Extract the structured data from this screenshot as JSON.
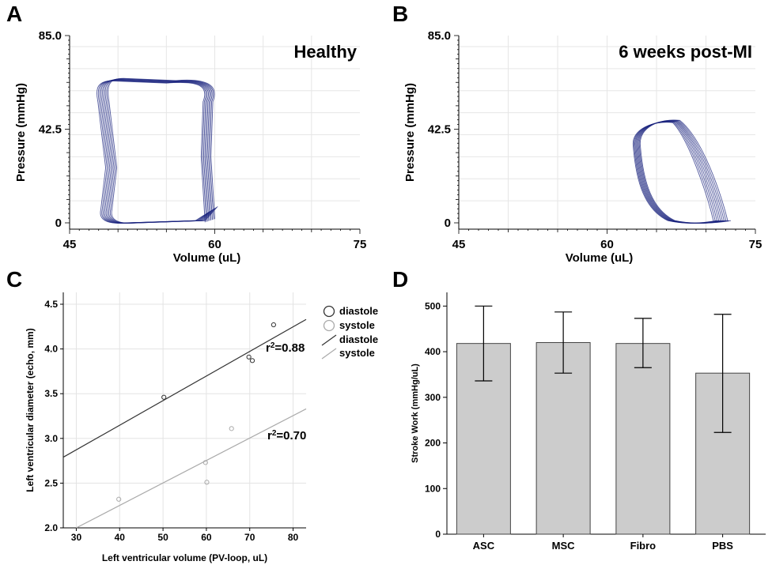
{
  "panels": {
    "a": {
      "letter": "A",
      "title": "Healthy"
    },
    "b": {
      "letter": "B",
      "title": "6 weeks post-MI"
    },
    "c": {
      "letter": "C"
    },
    "d": {
      "letter": "D"
    }
  },
  "chart_data": [
    {
      "id": "A",
      "type": "line",
      "title": "Healthy",
      "xlabel": "Volume (uL)",
      "ylabel": "Pressure (mmHg)",
      "xlim": [
        45,
        75
      ],
      "ylim": [
        0,
        85
      ],
      "xticks": [
        "45",
        "60",
        "75"
      ],
      "yticks": [
        "0",
        "42.5",
        "85.0"
      ],
      "grid": true,
      "color": "#1a237e",
      "loop": {
        "description_values": "pressure-volume loops, approx. 8 overlapping cycles",
        "v_min": 48.5,
        "v_max": 59.5,
        "p_min": 0,
        "p_max": 65
      }
    },
    {
      "id": "B",
      "type": "line",
      "title": "6 weeks post-MI",
      "xlabel": "Volume (uL)",
      "ylabel": "Pressure (mmHg)",
      "xlim": [
        45,
        75
      ],
      "ylim": [
        0,
        85
      ],
      "xticks": [
        "45",
        "60",
        "75"
      ],
      "yticks": [
        "0",
        "42.5",
        "85.0"
      ],
      "grid": true,
      "color": "#1a237e",
      "loop": {
        "v_min": 63,
        "v_max": 71.5,
        "p_min": 0,
        "p_max": 46
      }
    },
    {
      "id": "C",
      "type": "scatter",
      "xlabel": "Left ventricular volume (PV-loop, uL)",
      "ylabel": "Left ventricular diameter (echo, mm)",
      "xlim": [
        27,
        83
      ],
      "ylim": [
        2.0,
        4.5
      ],
      "xticks": [
        "30",
        "40",
        "50",
        "60",
        "70",
        "80"
      ],
      "yticks": [
        "2.0",
        "2.5",
        "3.0",
        "3.5",
        "4.0",
        "4.5"
      ],
      "series": [
        {
          "name": "diastole",
          "color": "#333333",
          "points": [
            [
              50.2,
              3.46
            ],
            [
              69.8,
              3.91
            ],
            [
              70.6,
              3.87
            ],
            [
              75.5,
              4.27
            ]
          ],
          "fit": [
            [
              27,
              2.79
            ],
            [
              83,
              4.33
            ]
          ],
          "r2": "r2=0.88"
        },
        {
          "name": "systole",
          "color": "#aaaaaa",
          "points": [
            [
              39.8,
              2.32
            ],
            [
              59.8,
              2.73
            ],
            [
              60.1,
              2.51
            ],
            [
              65.8,
              3.11
            ]
          ],
          "fit": [
            [
              30,
              2.0
            ],
            [
              83,
              3.33
            ]
          ],
          "r2": "r2=0.70"
        }
      ],
      "legend": {
        "entries": [
          "diastole",
          "systole",
          "diastole",
          "systole"
        ],
        "placement": "top-right"
      }
    },
    {
      "id": "D",
      "type": "bar",
      "ylabel": "Stroke Work (mmHg/uL)",
      "categories": [
        "ASC",
        "MSC",
        "Fibro",
        "PBS"
      ],
      "values": [
        418,
        420,
        418,
        353
      ],
      "errors_upper": [
        500,
        487,
        473,
        482
      ],
      "errors_lower": [
        336,
        353,
        365,
        223
      ],
      "ylim": [
        0,
        530
      ],
      "yticks": [
        "0",
        "100",
        "200",
        "300",
        "400",
        "500"
      ],
      "bar_color": "#cccccc"
    }
  ]
}
